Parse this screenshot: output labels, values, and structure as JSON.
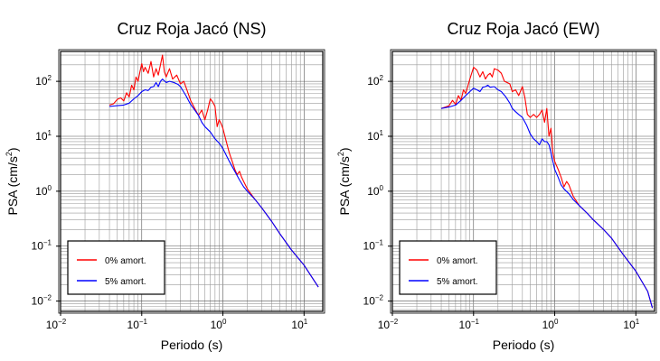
{
  "chart_data": [
    {
      "type": "line",
      "title": "Cruz Roja Jacó (NS)",
      "xlabel": "Periodo (s)",
      "ylabel_main": "PSA (cm/s",
      "ylabel_sup": "2",
      "ylabel_tail": ")",
      "xscale": "log",
      "yscale": "log",
      "xlim": [
        0.01,
        17
      ],
      "ylim": [
        0.0065,
        350
      ],
      "grid": true,
      "legend_position": "bottom-left",
      "x_ticks": [
        {
          "value": 0.01,
          "base": "10",
          "exp": "−2"
        },
        {
          "value": 0.1,
          "base": "10",
          "exp": "−1"
        },
        {
          "value": 1,
          "base": "10",
          "exp": "0"
        },
        {
          "value": 10,
          "base": "10",
          "exp": "1"
        }
      ],
      "y_ticks": [
        {
          "value": 0.01,
          "base": "10",
          "exp": "−2"
        },
        {
          "value": 0.1,
          "base": "10",
          "exp": "−1"
        },
        {
          "value": 1,
          "base": "10",
          "exp": "0"
        },
        {
          "value": 10,
          "base": "10",
          "exp": "1"
        },
        {
          "value": 100,
          "base": "10",
          "exp": "2"
        }
      ],
      "series": [
        {
          "name": "0% amort.",
          "color": "#ff0000",
          "points": [
            [
              0.04,
              37
            ],
            [
              0.045,
              39
            ],
            [
              0.05,
              47
            ],
            [
              0.055,
              50
            ],
            [
              0.06,
              44
            ],
            [
              0.065,
              62
            ],
            [
              0.07,
              52
            ],
            [
              0.075,
              85
            ],
            [
              0.08,
              70
            ],
            [
              0.085,
              120
            ],
            [
              0.09,
              100
            ],
            [
              0.095,
              150
            ],
            [
              0.1,
              210
            ],
            [
              0.105,
              150
            ],
            [
              0.11,
              180
            ],
            [
              0.12,
              140
            ],
            [
              0.13,
              230
            ],
            [
              0.14,
              120
            ],
            [
              0.15,
              170
            ],
            [
              0.16,
              130
            ],
            [
              0.17,
              200
            ],
            [
              0.18,
              300
            ],
            [
              0.19,
              150
            ],
            [
              0.2,
              120
            ],
            [
              0.22,
              170
            ],
            [
              0.24,
              110
            ],
            [
              0.27,
              130
            ],
            [
              0.3,
              90
            ],
            [
              0.33,
              100
            ],
            [
              0.36,
              70
            ],
            [
              0.4,
              45
            ],
            [
              0.45,
              32
            ],
            [
              0.5,
              24
            ],
            [
              0.55,
              30
            ],
            [
              0.6,
              20
            ],
            [
              0.65,
              30
            ],
            [
              0.7,
              48
            ],
            [
              0.75,
              42
            ],
            [
              0.8,
              35
            ],
            [
              0.85,
              15
            ],
            [
              0.9,
              20
            ],
            [
              0.95,
              17
            ],
            [
              1.0,
              14
            ],
            [
              1.1,
              8
            ],
            [
              1.2,
              5
            ],
            [
              1.3,
              3.5
            ],
            [
              1.4,
              2.5
            ],
            [
              1.5,
              2.0
            ],
            [
              1.6,
              2.3
            ],
            [
              1.7,
              1.8
            ],
            [
              1.8,
              1.5
            ],
            [
              2.0,
              1.1
            ],
            [
              2.5,
              0.7
            ],
            [
              3,
              0.5
            ],
            [
              4,
              0.28
            ],
            [
              5,
              0.17
            ],
            [
              7,
              0.085
            ],
            [
              10,
              0.045
            ],
            [
              15,
              0.018
            ]
          ]
        },
        {
          "name": "5% amort.",
          "color": "#0000ff",
          "points": [
            [
              0.04,
              35
            ],
            [
              0.05,
              36
            ],
            [
              0.06,
              37
            ],
            [
              0.07,
              40
            ],
            [
              0.08,
              48
            ],
            [
              0.09,
              55
            ],
            [
              0.1,
              65
            ],
            [
              0.11,
              70
            ],
            [
              0.12,
              68
            ],
            [
              0.13,
              78
            ],
            [
              0.14,
              80
            ],
            [
              0.15,
              95
            ],
            [
              0.16,
              80
            ],
            [
              0.17,
              100
            ],
            [
              0.18,
              110
            ],
            [
              0.2,
              95
            ],
            [
              0.22,
              100
            ],
            [
              0.25,
              95
            ],
            [
              0.28,
              88
            ],
            [
              0.3,
              80
            ],
            [
              0.35,
              55
            ],
            [
              0.4,
              38
            ],
            [
              0.45,
              30
            ],
            [
              0.5,
              24
            ],
            [
              0.55,
              18
            ],
            [
              0.6,
              15
            ],
            [
              0.7,
              12
            ],
            [
              0.8,
              9
            ],
            [
              0.9,
              7.5
            ],
            [
              1.0,
              6
            ],
            [
              1.1,
              4.5
            ],
            [
              1.2,
              3.5
            ],
            [
              1.4,
              2.3
            ],
            [
              1.6,
              1.6
            ],
            [
              1.8,
              1.2
            ],
            [
              2.0,
              1.0
            ],
            [
              2.5,
              0.7
            ],
            [
              3,
              0.5
            ],
            [
              4,
              0.28
            ],
            [
              5,
              0.17
            ],
            [
              7,
              0.085
            ],
            [
              10,
              0.045
            ],
            [
              15,
              0.018
            ]
          ]
        }
      ]
    },
    {
      "type": "line",
      "title": "Cruz Roja Jacó (EW)",
      "xlabel": "Periodo (s)",
      "ylabel_main": "PSA (cm/s",
      "ylabel_sup": "2",
      "ylabel_tail": ")",
      "xscale": "log",
      "yscale": "log",
      "xlim": [
        0.01,
        17
      ],
      "ylim": [
        0.0065,
        350
      ],
      "grid": true,
      "legend_position": "bottom-left",
      "x_ticks": [
        {
          "value": 0.01,
          "base": "10",
          "exp": "−2"
        },
        {
          "value": 0.1,
          "base": "10",
          "exp": "−1"
        },
        {
          "value": 1,
          "base": "10",
          "exp": "0"
        },
        {
          "value": 10,
          "base": "10",
          "exp": "1"
        }
      ],
      "y_ticks": [
        {
          "value": 0.01,
          "base": "10",
          "exp": "−2"
        },
        {
          "value": 0.1,
          "base": "10",
          "exp": "−1"
        },
        {
          "value": 1,
          "base": "10",
          "exp": "0"
        },
        {
          "value": 10,
          "base": "10",
          "exp": "1"
        },
        {
          "value": 100,
          "base": "10",
          "exp": "2"
        }
      ],
      "series": [
        {
          "name": "0% amort.",
          "color": "#ff0000",
          "points": [
            [
              0.04,
              32
            ],
            [
              0.045,
              34
            ],
            [
              0.05,
              36
            ],
            [
              0.055,
              45
            ],
            [
              0.06,
              38
            ],
            [
              0.065,
              55
            ],
            [
              0.07,
              45
            ],
            [
              0.075,
              70
            ],
            [
              0.08,
              60
            ],
            [
              0.09,
              110
            ],
            [
              0.1,
              180
            ],
            [
              0.11,
              160
            ],
            [
              0.12,
              120
            ],
            [
              0.13,
              150
            ],
            [
              0.14,
              110
            ],
            [
              0.15,
              130
            ],
            [
              0.16,
              140
            ],
            [
              0.17,
              120
            ],
            [
              0.18,
              170
            ],
            [
              0.2,
              160
            ],
            [
              0.22,
              140
            ],
            [
              0.24,
              100
            ],
            [
              0.26,
              95
            ],
            [
              0.28,
              90
            ],
            [
              0.3,
              65
            ],
            [
              0.33,
              70
            ],
            [
              0.36,
              55
            ],
            [
              0.4,
              80
            ],
            [
              0.43,
              50
            ],
            [
              0.46,
              25
            ],
            [
              0.5,
              22
            ],
            [
              0.55,
              25
            ],
            [
              0.6,
              22
            ],
            [
              0.65,
              25
            ],
            [
              0.7,
              30
            ],
            [
              0.75,
              18
            ],
            [
              0.8,
              32
            ],
            [
              0.85,
              10
            ],
            [
              0.9,
              14
            ],
            [
              0.95,
              5
            ],
            [
              1.0,
              3.5
            ],
            [
              1.1,
              2.5
            ],
            [
              1.2,
              1.8
            ],
            [
              1.3,
              1.2
            ],
            [
              1.4,
              1.5
            ],
            [
              1.5,
              1.3
            ],
            [
              1.6,
              1.0
            ],
            [
              1.7,
              0.8
            ],
            [
              1.8,
              0.7
            ],
            [
              2.0,
              0.55
            ],
            [
              2.5,
              0.4
            ],
            [
              3,
              0.3
            ],
            [
              4,
              0.2
            ],
            [
              5,
              0.14
            ],
            [
              7,
              0.07
            ],
            [
              10,
              0.035
            ],
            [
              14,
              0.015
            ],
            [
              16,
              0.0075
            ]
          ]
        },
        {
          "name": "5% amort.",
          "color": "#0000ff",
          "points": [
            [
              0.04,
              32
            ],
            [
              0.05,
              34
            ],
            [
              0.06,
              37
            ],
            [
              0.07,
              45
            ],
            [
              0.08,
              55
            ],
            [
              0.09,
              65
            ],
            [
              0.1,
              75
            ],
            [
              0.11,
              70
            ],
            [
              0.12,
              65
            ],
            [
              0.13,
              78
            ],
            [
              0.14,
              80
            ],
            [
              0.15,
              85
            ],
            [
              0.16,
              78
            ],
            [
              0.18,
              80
            ],
            [
              0.2,
              70
            ],
            [
              0.22,
              65
            ],
            [
              0.25,
              52
            ],
            [
              0.28,
              40
            ],
            [
              0.3,
              32
            ],
            [
              0.33,
              28
            ],
            [
              0.36,
              25
            ],
            [
              0.4,
              22
            ],
            [
              0.45,
              16
            ],
            [
              0.5,
              11
            ],
            [
              0.55,
              9
            ],
            [
              0.6,
              8
            ],
            [
              0.65,
              7
            ],
            [
              0.7,
              9
            ],
            [
              0.75,
              8
            ],
            [
              0.8,
              8
            ],
            [
              0.85,
              7
            ],
            [
              0.9,
              5
            ],
            [
              0.95,
              3.5
            ],
            [
              1.0,
              2.5
            ],
            [
              1.1,
              1.8
            ],
            [
              1.2,
              1.3
            ],
            [
              1.3,
              1.1
            ],
            [
              1.5,
              0.9
            ],
            [
              1.7,
              0.7
            ],
            [
              2.0,
              0.55
            ],
            [
              2.5,
              0.4
            ],
            [
              3,
              0.3
            ],
            [
              4,
              0.2
            ],
            [
              5,
              0.14
            ],
            [
              7,
              0.07
            ],
            [
              10,
              0.035
            ],
            [
              14,
              0.015
            ],
            [
              16,
              0.0075
            ]
          ]
        }
      ]
    }
  ]
}
